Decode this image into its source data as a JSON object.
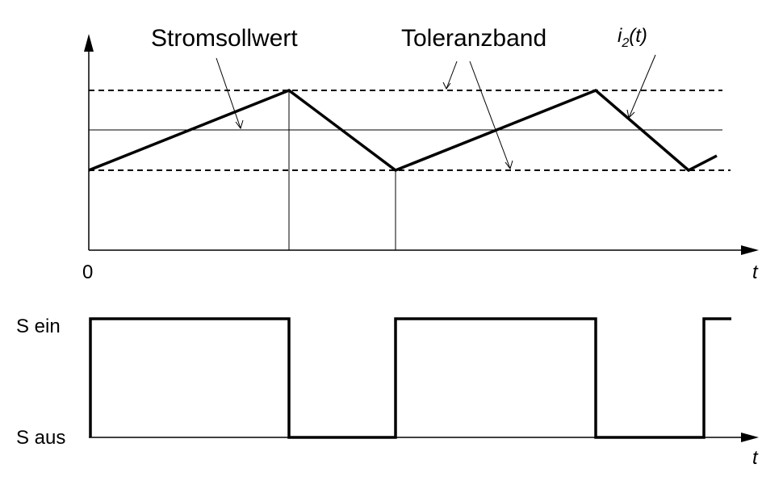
{
  "labels": {
    "setpoint": "Stromsollwert",
    "band": "Toleranzband",
    "current_var": "i",
    "current_sub": "2",
    "current_arg": "(t)",
    "origin": "0",
    "time_axis_top": "t",
    "time_axis_bottom": "t",
    "switch_on": "S ein",
    "switch_off": "S aus"
  },
  "colors": {
    "stroke": "#000000",
    "background": "#ffffff"
  }
}
